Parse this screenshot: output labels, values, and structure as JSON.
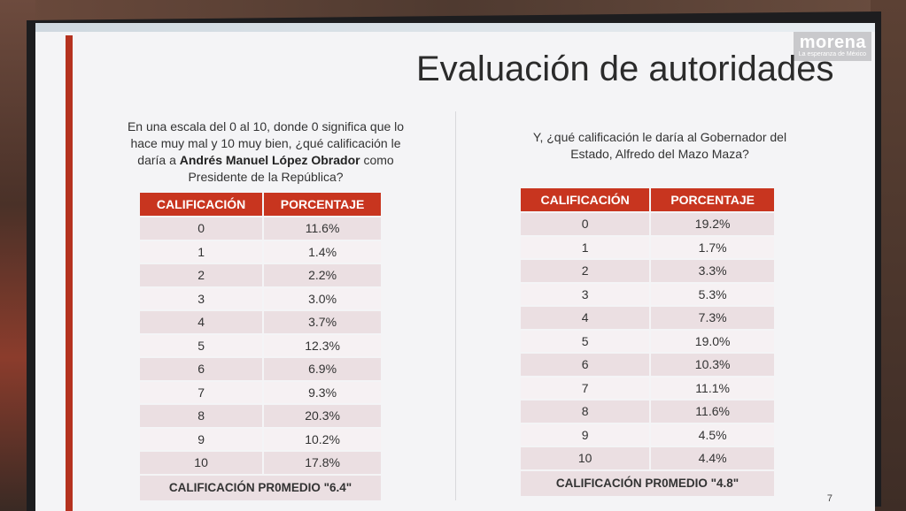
{
  "logo": {
    "main": "morena",
    "sub": "La esperanza de México"
  },
  "title": "Evaluación de autoridades",
  "left": {
    "question_pre": "En una escala del 0 al 10, donde 0 significa que lo hace muy mal y 10 muy bien, ¿qué calificación le daría a ",
    "question_bold": "Andrés Manuel López Obrador",
    "question_post": " como Presidente de la República?",
    "headers": [
      "CALIFICACIÓN",
      "PORCENTAJE"
    ],
    "rows": [
      [
        "0",
        "11.6%"
      ],
      [
        "1",
        "1.4%"
      ],
      [
        "2",
        "2.2%"
      ],
      [
        "3",
        "3.0%"
      ],
      [
        "4",
        "3.7%"
      ],
      [
        "5",
        "12.3%"
      ],
      [
        "6",
        "6.9%"
      ],
      [
        "7",
        "9.3%"
      ],
      [
        "8",
        "20.3%"
      ],
      [
        "9",
        "10.2%"
      ],
      [
        "10",
        "17.8%"
      ]
    ],
    "average": "CALIFICACIÓN PR0MEDIO  \"6.4\""
  },
  "right": {
    "question": "Y, ¿qué calificación le daría al Gobernador del Estado, Alfredo del Mazo Maza?",
    "headers": [
      "CALIFICACIÓN",
      "PORCENTAJE"
    ],
    "rows": [
      [
        "0",
        "19.2%"
      ],
      [
        "1",
        "1.7%"
      ],
      [
        "2",
        "3.3%"
      ],
      [
        "3",
        "5.3%"
      ],
      [
        "4",
        "7.3%"
      ],
      [
        "5",
        "19.0%"
      ],
      [
        "6",
        "10.3%"
      ],
      [
        "7",
        "11.1%"
      ],
      [
        "8",
        "11.6%"
      ],
      [
        "9",
        "4.5%"
      ],
      [
        "10",
        "4.4%"
      ]
    ],
    "average": "CALIFICACIÓN PR0MEDIO  \"4.8\""
  },
  "page_number": "7",
  "colors": {
    "accent": "#c8351f",
    "row_odd": "#ebdfe2",
    "row_even": "#f6f1f3"
  }
}
